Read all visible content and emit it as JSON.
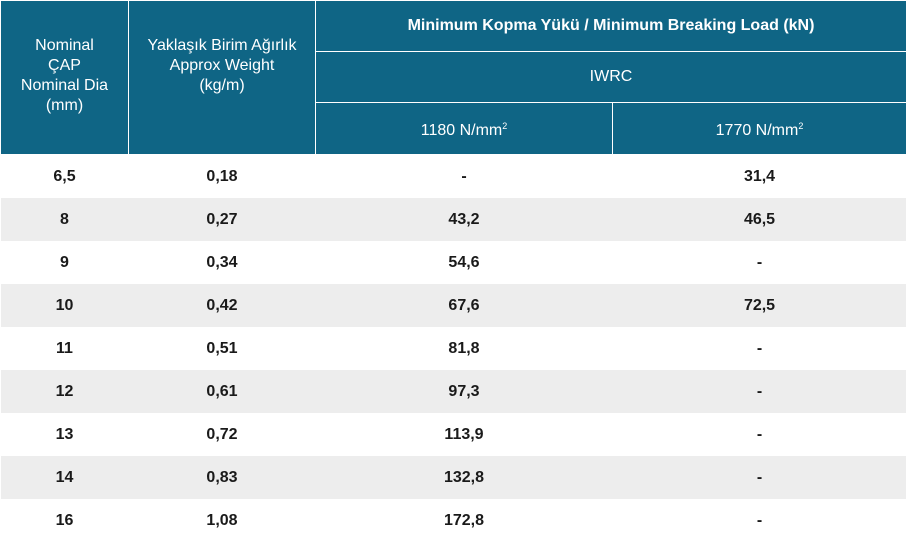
{
  "header": {
    "col1": [
      "Nominal",
      "ÇAP",
      "Nominal Dia",
      "(mm)"
    ],
    "col2": [
      "Yaklaşık Birim Ağırlık",
      "Approx Weight",
      "(kg/m)"
    ],
    "group_title": "Minimum Kopma Yükü / Minimum Breaking Load (kN)",
    "subgroup": "IWRC",
    "grade1_value": "1180 N/mm",
    "grade1_sup": "2",
    "grade2_value": "1770 N/mm",
    "grade2_sup": "2"
  },
  "rows": [
    {
      "dia": "6,5",
      "weight": "0,18",
      "g1180": "-",
      "g1770": "31,4"
    },
    {
      "dia": "8",
      "weight": "0,27",
      "g1180": "43,2",
      "g1770": "46,5"
    },
    {
      "dia": "9",
      "weight": "0,34",
      "g1180": "54,6",
      "g1770": "-"
    },
    {
      "dia": "10",
      "weight": "0,42",
      "g1180": "67,6",
      "g1770": "72,5"
    },
    {
      "dia": "11",
      "weight": "0,51",
      "g1180": "81,8",
      "g1770": "-"
    },
    {
      "dia": "12",
      "weight": "0,61",
      "g1180": "97,3",
      "g1770": "-"
    },
    {
      "dia": "13",
      "weight": "0,72",
      "g1180": "113,9",
      "g1770": "-"
    },
    {
      "dia": "14",
      "weight": "0,83",
      "g1180": "132,8",
      "g1770": "-"
    },
    {
      "dia": "16",
      "weight": "1,08",
      "g1180": "172,8",
      "g1770": "-"
    }
  ],
  "colors": {
    "header_bg": "#0f6585",
    "stripe": "#ededed"
  }
}
